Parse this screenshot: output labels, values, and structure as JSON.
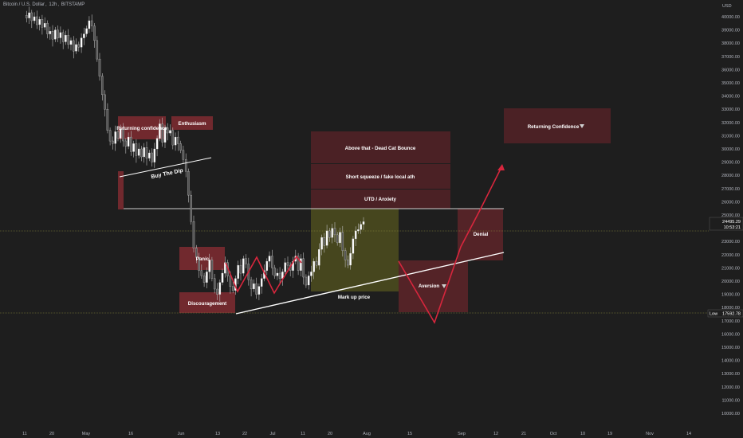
{
  "header": {
    "symbol": "Bitcoin / U.S. Dollar",
    "interval": "12h",
    "exchange": "BITSTAMP"
  },
  "chart_data": {
    "type": "candlestick",
    "currency": "USD",
    "y_axis": {
      "min": 10000,
      "max": 40000,
      "ticks": [
        "40000.00",
        "39000.00",
        "38000.00",
        "37000.00",
        "36000.00",
        "35000.00",
        "34000.00",
        "33000.00",
        "32000.00",
        "31000.00",
        "30000.00",
        "29000.00",
        "28000.00",
        "27000.00",
        "26000.00",
        "25000.00",
        "24000.00",
        "23000.00",
        "22000.00",
        "21000.00",
        "20000.00",
        "19000.00",
        "18000.00",
        "17000.00",
        "16000.00",
        "15000.00",
        "14000.00",
        "13000.00",
        "12000.00",
        "11000.00",
        "10000.00"
      ]
    },
    "x_axis": {
      "ticks": [
        "11",
        "20",
        "May",
        "16",
        "Jun",
        "13",
        "22",
        "Jul",
        "11",
        "20",
        "Aug",
        "15",
        "Sep",
        "12",
        "21",
        "Oct",
        "10",
        "19",
        "Nov",
        "14"
      ]
    },
    "current_price": "24495.29",
    "countdown": "10:53:21",
    "low_label": "Low",
    "low_price": "17592.78",
    "key_level": 25600,
    "price_series": [
      40100,
      39900,
      40300,
      39700,
      40000,
      39400,
      39800,
      39200,
      39500,
      38700,
      38900,
      38300,
      39000,
      38400,
      38800,
      38100,
      38600,
      37900,
      38200,
      37400,
      37900,
      37700,
      38400,
      38700,
      39100,
      39700,
      39300,
      38200,
      36800,
      35500,
      34100,
      33000,
      31400,
      30600,
      30400,
      31300,
      30800,
      31500,
      30600,
      30200,
      30900,
      29800,
      30400,
      29500,
      30000,
      29400,
      30100,
      29300,
      29700,
      29000,
      30000,
      30800,
      31900,
      30500,
      31600,
      31200,
      31400,
      30300,
      30900,
      30400,
      29900,
      29200,
      28300,
      26500,
      24500,
      22500,
      21800,
      20800,
      20400,
      19900,
      20700,
      21600,
      20200,
      19400,
      19000,
      19900,
      20600,
      21400,
      20400,
      19600,
      19300,
      20200,
      21200,
      20600,
      21700,
      21300,
      20100,
      19400,
      19800,
      19000,
      19600,
      20200,
      20800,
      21500,
      21900,
      21000,
      20400,
      20600,
      20200,
      20700,
      21400,
      21200,
      20800,
      21500,
      21900,
      20800,
      21700,
      20300,
      19700,
      20400,
      20700,
      21500,
      21200,
      22400,
      23300,
      22700,
      23800,
      23300,
      24000,
      23500,
      22900,
      23700,
      22300,
      21600,
      21200,
      22100,
      23200,
      23800,
      23900,
      24300,
      24495
    ]
  },
  "annotations": {
    "returning_confidence_left": "Returning confidence",
    "enthusiasm": "Enthusiasm",
    "buy_the_dip": "Buy The Dip",
    "panic": "Panic",
    "discouragement": "Discouragement",
    "dead_cat_bounce": "Above that - Dead Cat Bounce",
    "short_squeeze": "Short squeeze / fake local ath",
    "utd_anxiety": "UTD / Anxiety",
    "mark_up_price": "Mark up price",
    "denial": "Denial",
    "aversion": "Aversion",
    "returning_confidence_right": "Returning Confidence"
  },
  "colors": {
    "background": "#1e1e1e",
    "zone_red": "#7a2a30",
    "zone_olive": "#4a4a1e",
    "arrow_red": "#d7263d",
    "trend_white": "#ffffff",
    "candle_up": "#ffffff",
    "candle_down": "#555555",
    "axis_text": "#b2b5be"
  }
}
